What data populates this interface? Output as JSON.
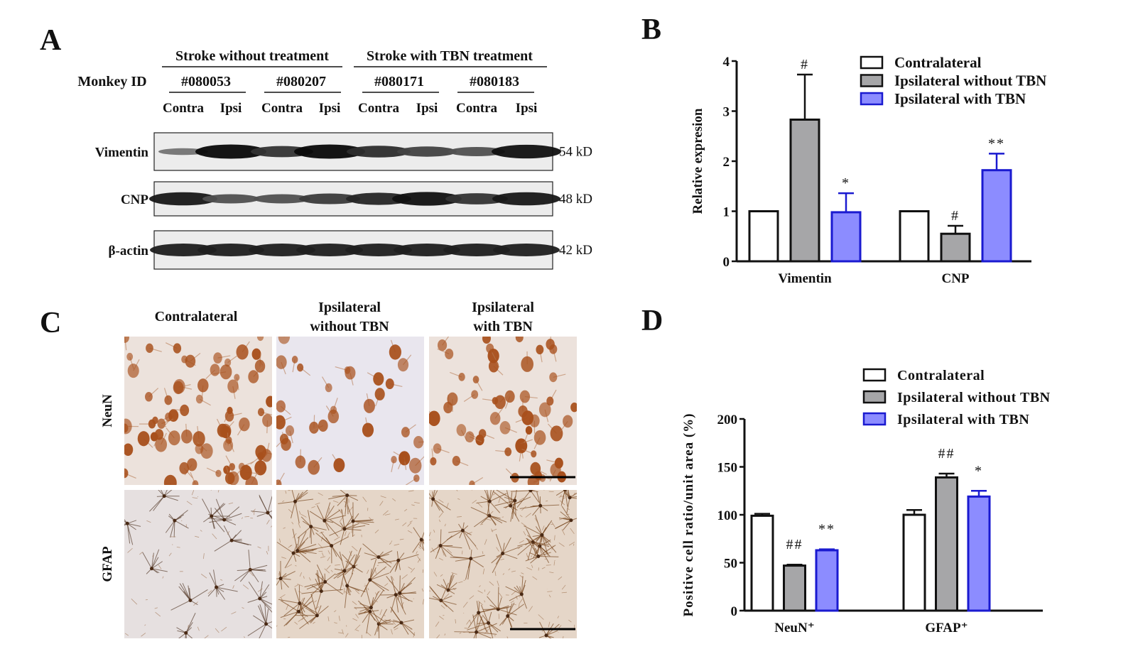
{
  "panels": {
    "a": {
      "letter": "A",
      "groups": [
        "Stroke without treatment",
        "Stroke with TBN treatment"
      ],
      "monkey_id_label": "Monkey ID",
      "monkey_ids": [
        "#080053",
        "#080207",
        "#080171",
        "#080183"
      ],
      "lanes": [
        "Contra",
        "Ipsi",
        "Contra",
        "Ipsi",
        "Contra",
        "Ipsi",
        "Contra",
        "Ipsi"
      ],
      "blots": [
        {
          "protein": "Vimentin",
          "size": "54 kD",
          "band_intensity": [
            0.25,
            1.0,
            0.7,
            1.0,
            0.75,
            0.6,
            0.5,
            0.95
          ]
        },
        {
          "protein": "CNP",
          "size": "48 kD",
          "band_intensity": [
            0.9,
            0.5,
            0.5,
            0.65,
            0.8,
            0.95,
            0.7,
            0.9
          ]
        },
        {
          "protein": "β-actin",
          "size": "42 kD",
          "band_intensity": [
            0.85,
            0.85,
            0.85,
            0.85,
            0.85,
            0.85,
            0.85,
            0.85
          ]
        }
      ]
    },
    "b": {
      "letter": "B"
    },
    "c": {
      "letter": "C",
      "columns": [
        [
          "Contralateral"
        ],
        [
          "Ipsilateral",
          "without TBN"
        ],
        [
          "Ipsilateral",
          "with TBN"
        ]
      ],
      "rows": [
        "NeuN",
        "GFAP"
      ]
    },
    "d": {
      "letter": "D"
    }
  },
  "colors": {
    "contralateral": "#ffffff",
    "ipsilateral_without": "#a6a6a8",
    "ipsilateral_with": "#8c8cff",
    "with_outline": "#1a1ad0",
    "stain": "#a8501c"
  },
  "chart_data": [
    {
      "type": "bar",
      "panel": "B",
      "categories": [
        "Vimentin",
        "CNP"
      ],
      "ylabel": "Relative expresion",
      "ylim": [
        0,
        4
      ],
      "yticks": [
        0,
        1,
        2,
        3,
        4
      ],
      "legend": "top-right",
      "series": [
        {
          "name": "Contralateral",
          "values": [
            1.0,
            1.0
          ],
          "errors": [
            0,
            0
          ],
          "annotations": [
            "",
            ""
          ]
        },
        {
          "name": "Ipsilateral without TBN",
          "values": [
            2.83,
            0.55
          ],
          "errors": [
            0.9,
            0.16
          ],
          "annotations": [
            "#",
            "#"
          ]
        },
        {
          "name": "Ipsilateral with TBN",
          "values": [
            0.98,
            1.82
          ],
          "errors": [
            0.38,
            0.33
          ],
          "annotations": [
            "*",
            "**"
          ]
        }
      ]
    },
    {
      "type": "bar",
      "panel": "D",
      "categories": [
        "NeuN⁺",
        "GFAP⁺"
      ],
      "ylabel": "Positive cell ratio/unit area (%)",
      "ylim": [
        0,
        200
      ],
      "yticks": [
        0,
        50,
        100,
        150,
        200
      ],
      "legend": "top-right",
      "series": [
        {
          "name": "Contralateral",
          "values": [
            99,
            100
          ],
          "errors": [
            2,
            5
          ],
          "annotations": [
            "",
            ""
          ]
        },
        {
          "name": "Ipsilateral without TBN",
          "values": [
            47,
            139
          ],
          "errors": [
            1,
            4
          ],
          "annotations": [
            "##",
            "##"
          ]
        },
        {
          "name": "Ipsilateral with TBN",
          "values": [
            63,
            119
          ],
          "errors": [
            1,
            6
          ],
          "annotations": [
            "**",
            "*"
          ]
        }
      ]
    }
  ]
}
